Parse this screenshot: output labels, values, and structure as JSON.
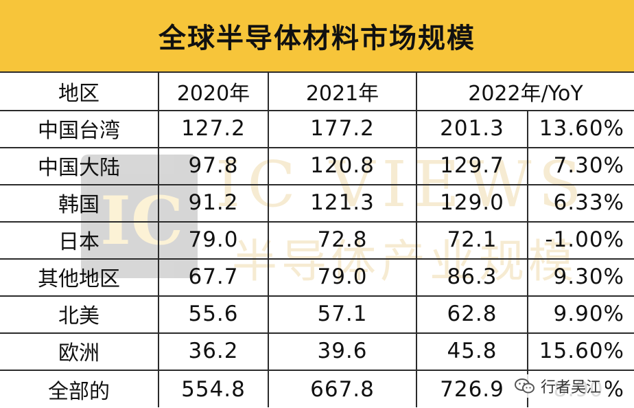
{
  "title": "全球半导体材料市场规模",
  "headers": [
    "地区",
    "2020年",
    "2021年",
    "2022年/YoY"
  ],
  "rows": [
    {
      "region": "中国台湾",
      "y2020": "127.2",
      "y2021": "177.2",
      "y2022": "201.3",
      "yoy": "13.60%"
    },
    {
      "region": "中国大陆",
      "y2020": "97.8",
      "y2021": "120.8",
      "y2022": "129.7",
      "yoy": "7.30%"
    },
    {
      "region": "韩国",
      "y2020": "91.2",
      "y2021": "121.3",
      "y2022": "129.0",
      "yoy": "6.33%"
    },
    {
      "region": "日本",
      "y2020": "79.0",
      "y2021": "72.8",
      "y2022": "72.1",
      "yoy": "-1.00%"
    },
    {
      "region": "其他地区",
      "y2020": "67.7",
      "y2021": "79.0",
      "y2022": "86.3",
      "yoy": "9.30%"
    },
    {
      "region": "北美",
      "y2020": "55.6",
      "y2021": "57.1",
      "y2022": "62.8",
      "yoy": "9.90%"
    },
    {
      "region": "欧洲",
      "y2020": "36.2",
      "y2021": "39.6",
      "y2022": "45.8",
      "yoy": "15.60%"
    },
    {
      "region": "全部的",
      "y2020": "554.8",
      "y2021": "667.8",
      "y2022": "726.9",
      "yoy": "8.90%"
    }
  ],
  "watermark": {
    "logo": "IC",
    "brand": "IC VIEWS",
    "subtitle": "半导体产业规模"
  },
  "footer_mark": {
    "text": "行者吴江",
    "icon": "wechat-icon"
  },
  "colors": {
    "title_bg": "#f7c53a",
    "grid": "#2a2a2a",
    "text": "#111111"
  }
}
